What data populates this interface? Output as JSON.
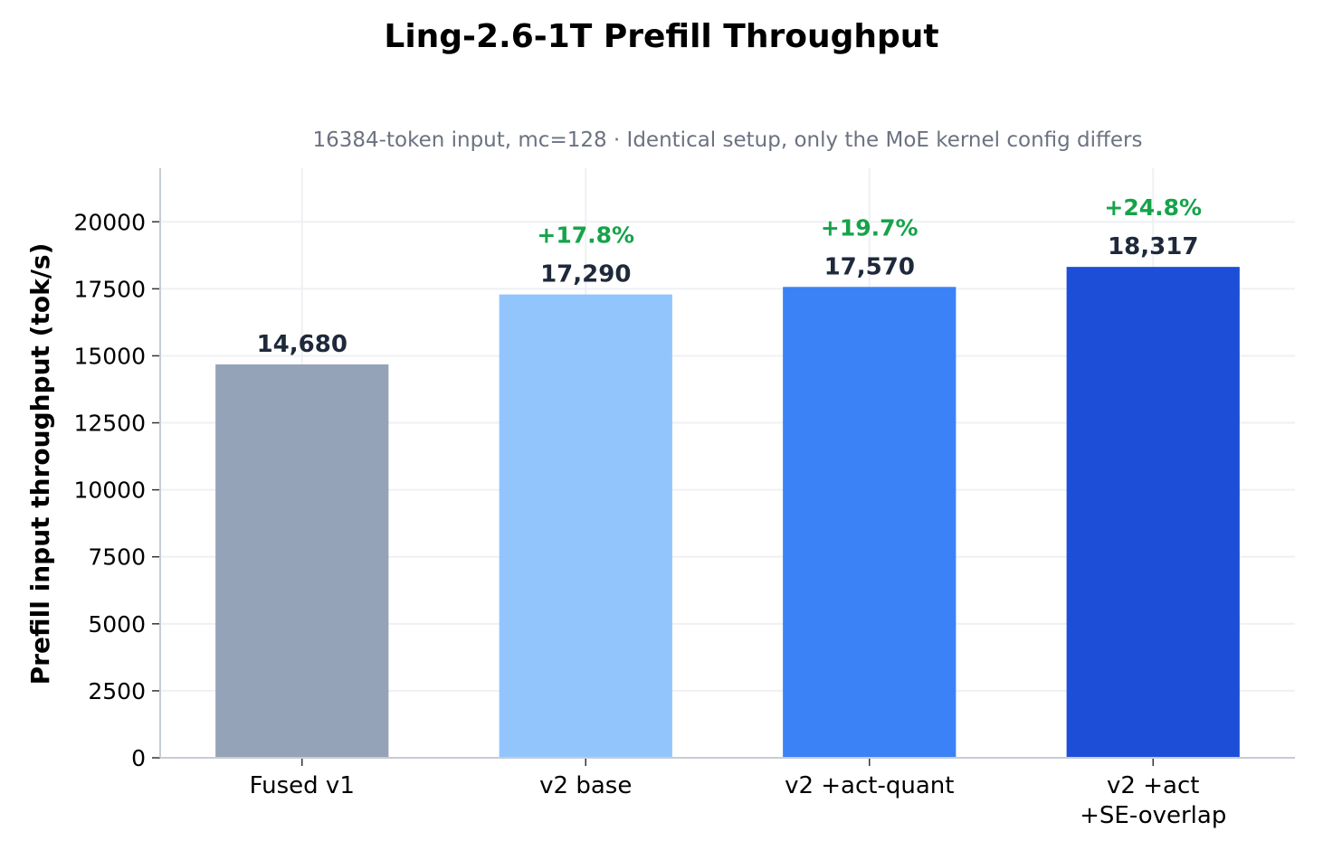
{
  "chart_data": {
    "type": "bar",
    "title": "Ling-2.6-1T  Prefill Throughput",
    "subtitle": "16384-token input, mc=128  ·  Identical setup, only the MoE kernel config differs",
    "xlabel": "",
    "ylabel": "Prefill input throughput (tok/s)",
    "categories": [
      [
        "Fused v1"
      ],
      [
        "v2 base"
      ],
      [
        "v2 +act-quant"
      ],
      [
        "v2 +act",
        "+SE-overlap"
      ]
    ],
    "values": [
      14680,
      17290,
      17570,
      18317
    ],
    "value_labels": [
      "14,680",
      "17,290",
      "17,570",
      "18,317"
    ],
    "improvement_labels": [
      "",
      "+17.8%",
      "+19.7%",
      "+24.8%"
    ],
    "bar_colors": [
      "#94a3b8",
      "#93c5fd",
      "#3b82f6",
      "#1d4ed8"
    ],
    "improvement_color": "#16a34a",
    "value_label_color": "#1e293b",
    "yticks": [
      0,
      2500,
      5000,
      7500,
      10000,
      12500,
      15000,
      17500,
      20000
    ],
    "ylim": [
      0,
      22000
    ],
    "grid": true,
    "legend": "none"
  }
}
